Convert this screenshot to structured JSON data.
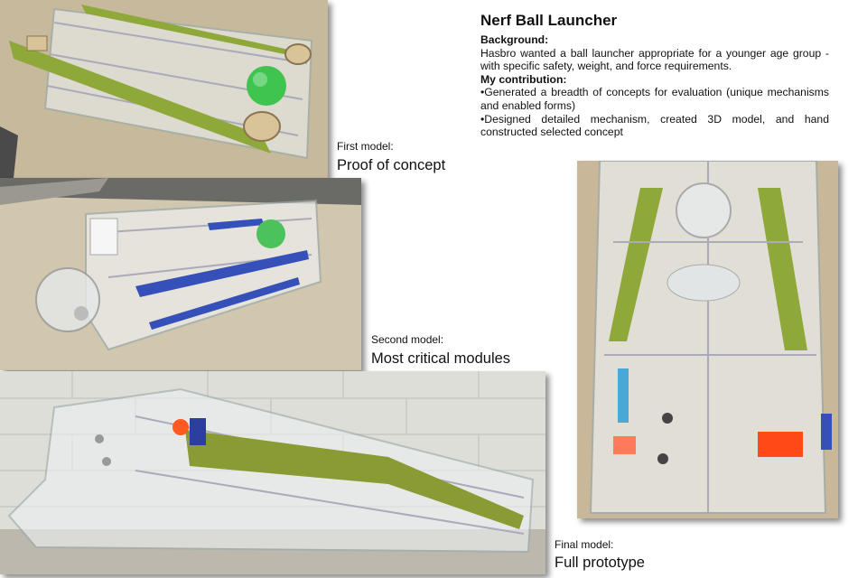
{
  "title": "Nerf Ball Launcher",
  "background": {
    "heading": "Background:",
    "text": "Hasbro wanted a ball launcher appropriate for a younger age group - with specific safety, weight, and force requirements."
  },
  "contribution": {
    "heading": "My contribution:",
    "items": [
      "•Generated a breadth of concepts for evaluation (unique mechanisms and enabled forms)",
      "•Designed detailed mechanism, created 3D model, and hand constructed selected concept"
    ]
  },
  "captions": [
    {
      "label": "First model:",
      "title": "Proof of concept"
    },
    {
      "label": "Second model:",
      "title": "Most critical modules"
    },
    {
      "label": "Final model:",
      "title": "Full prototype"
    }
  ],
  "colors": {
    "wood": "#c9b99a",
    "green_band": "#8fa83a",
    "blue_band": "#3550b8",
    "acrylic": "#e4e8ea",
    "brick_wall": "#dcdcd8"
  }
}
